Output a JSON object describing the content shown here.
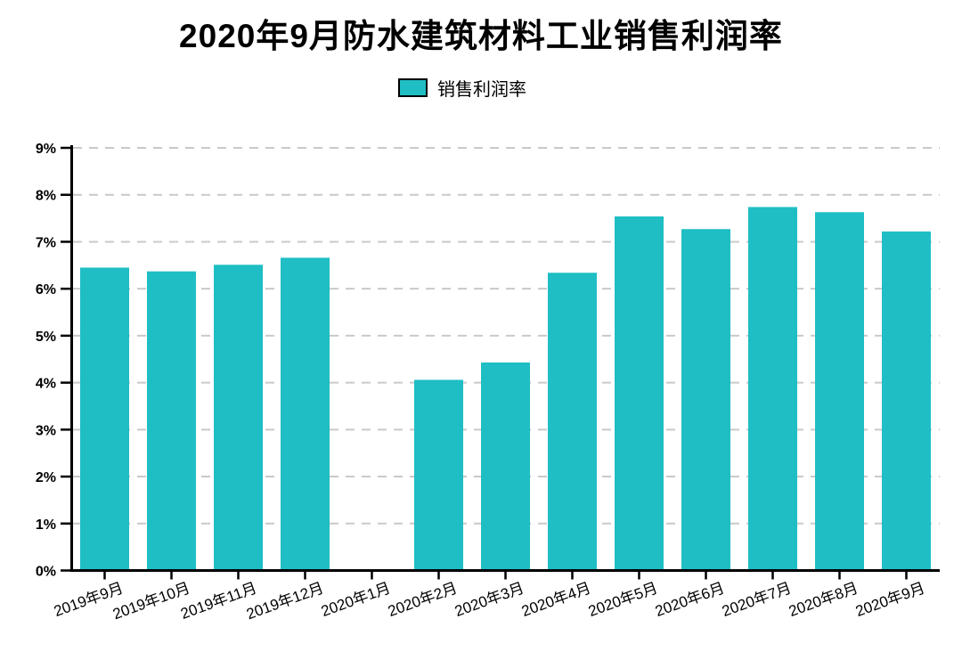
{
  "chart_data": {
    "type": "bar",
    "title": "2020年9月防水建筑材料工业销售利润率",
    "legend": [
      {
        "label": "销售利润率",
        "color": "#1EBEC4"
      }
    ],
    "legend_position": "top-center",
    "categories": [
      "2019年9月",
      "2019年10月",
      "2019年11月",
      "2019年12月",
      "2020年1月",
      "2020年2月",
      "2020年3月",
      "2020年4月",
      "2020年5月",
      "2020年6月",
      "2020年7月",
      "2020年8月",
      "2020年9月"
    ],
    "series": [
      {
        "name": "销售利润率",
        "values": [
          6.45,
          6.37,
          6.51,
          6.66,
          null,
          4.06,
          4.43,
          6.34,
          7.54,
          7.27,
          7.74,
          7.63,
          7.22
        ]
      }
    ],
    "xlabel": "",
    "ylabel": "",
    "ylim": [
      0,
      9
    ],
    "ytick_step": 1,
    "ytick_labels": [
      "0%",
      "1%",
      "2%",
      "3%",
      "4%",
      "5%",
      "6%",
      "7%",
      "8%",
      "9%"
    ],
    "grid": "horizontal-dashed",
    "x_label_rotation_deg": -20,
    "colors": {
      "bar": "#1EBEC4",
      "axis": "#000000",
      "grid": "#c9c9c9",
      "text": "#000000",
      "legend_swatch_border": "#000000",
      "background": "#ffffff"
    }
  }
}
